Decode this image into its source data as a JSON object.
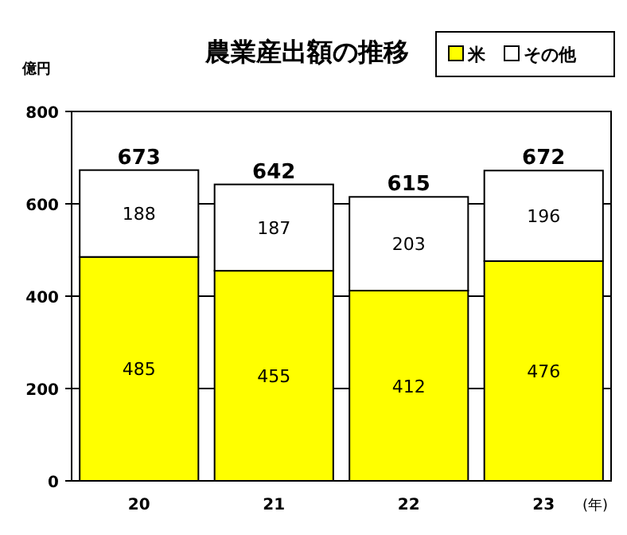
{
  "chart_data": {
    "type": "bar",
    "title": "農業産出額の推移",
    "ylabel": "億円",
    "xlabel": "(年)",
    "categories": [
      "20",
      "21",
      "22",
      "23"
    ],
    "stacked": true,
    "series": [
      {
        "name": "米",
        "color": "#ffff00",
        "values": [
          485,
          455,
          412,
          476
        ]
      },
      {
        "name": "その他",
        "color": "#ffffff",
        "values": [
          188,
          187,
          203,
          196
        ]
      }
    ],
    "totals": [
      "673",
      "642",
      "615",
      "672"
    ],
    "data_labels": true,
    "ylim": [
      0,
      800
    ],
    "yticks": [
      0,
      200,
      400,
      600,
      800
    ],
    "grid": "y",
    "legend": "top right"
  }
}
